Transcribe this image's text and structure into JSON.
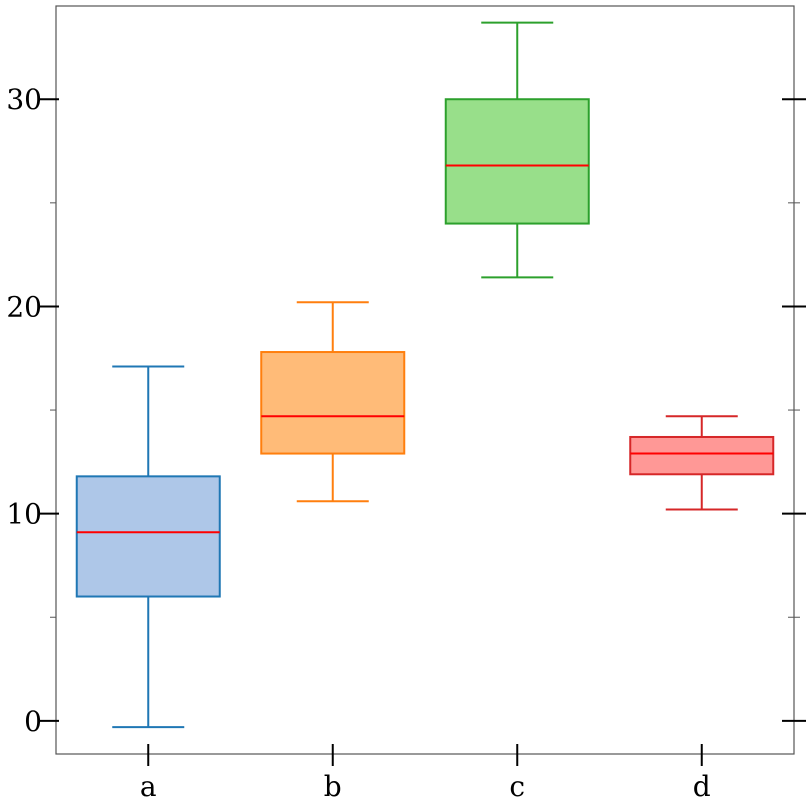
{
  "chart_data": {
    "type": "box",
    "title": "",
    "xlabel": "",
    "ylabel": "",
    "categories": [
      "a",
      "b",
      "c",
      "d"
    ],
    "boxes": [
      {
        "category": "a",
        "whisker_low": -0.3,
        "q1": 6.0,
        "median": 9.1,
        "q3": 11.8,
        "whisker_high": 17.1,
        "fill": "#aec7e8",
        "edge": "#1f77b4"
      },
      {
        "category": "b",
        "whisker_low": 10.6,
        "q1": 12.9,
        "median": 14.7,
        "q3": 17.8,
        "whisker_high": 20.2,
        "fill": "#ffbb78",
        "edge": "#ff7f0e"
      },
      {
        "category": "c",
        "whisker_low": 21.4,
        "q1": 24.0,
        "median": 26.8,
        "q3": 30.0,
        "whisker_high": 33.7,
        "fill": "#98df8a",
        "edge": "#2ca02c"
      },
      {
        "category": "d",
        "whisker_low": 10.2,
        "q1": 11.9,
        "median": 12.9,
        "q3": 13.7,
        "whisker_high": 14.7,
        "fill": "#ff9896",
        "edge": "#d62728"
      }
    ],
    "median_color": "#ff0000",
    "ylim": [
      -1.6,
      34.5
    ],
    "yticks": [
      0,
      10,
      20,
      30
    ],
    "yticks_minor": [
      5,
      15,
      25
    ],
    "grid": false,
    "legend": "none"
  }
}
